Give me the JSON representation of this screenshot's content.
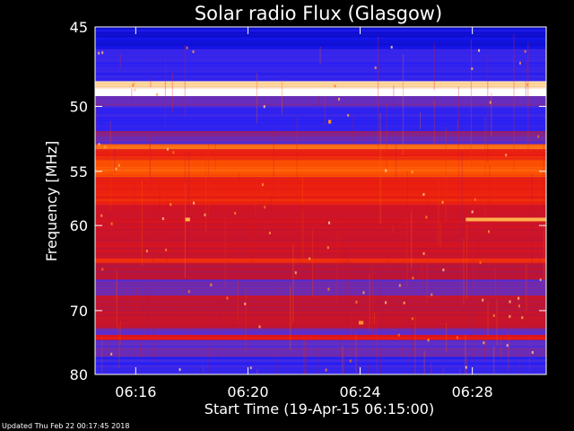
{
  "chart_data": {
    "type": "heatmap",
    "title": "Solar radio Flux (Glasgow)",
    "xlabel": "Start Time (19-Apr-15 06:15:00)",
    "ylabel": "Frequency [MHz]",
    "x_unit": "time (UT)",
    "xlim": [
      "06:14:33",
      "06:30:38"
    ],
    "ylim": [
      45,
      80
    ],
    "y_scale": "reciprocal",
    "x_ticks": [
      "06:16",
      "06:20",
      "06:24",
      "06:28"
    ],
    "y_ticks": [
      45,
      50,
      55,
      60,
      70,
      80
    ],
    "colormap": [
      "#00008b",
      "#1a1aff",
      "#5a32d2",
      "#b4143c",
      "#e61414",
      "#ff5a00",
      "#ffb450",
      "#ffffff"
    ],
    "bands_mhz": [
      {
        "from": 45,
        "to": 46.3,
        "level": 0.1
      },
      {
        "from": 46.3,
        "to": 48.3,
        "level": 0.2
      },
      {
        "from": 48.3,
        "to": 48.7,
        "level": 0.9
      },
      {
        "from": 48.7,
        "to": 49.3,
        "level": 1.0
      },
      {
        "from": 49.3,
        "to": 50.0,
        "level": 0.3
      },
      {
        "from": 50.0,
        "to": 51.8,
        "level": 0.2
      },
      {
        "from": 51.8,
        "to": 52.2,
        "level": 0.35
      },
      {
        "from": 52.2,
        "to": 52.8,
        "level": 0.3
      },
      {
        "from": 52.8,
        "to": 53.2,
        "level": 0.75
      },
      {
        "from": 53.2,
        "to": 54.0,
        "level": 0.6
      },
      {
        "from": 54.0,
        "to": 55.5,
        "level": 0.7
      },
      {
        "from": 55.5,
        "to": 58.0,
        "level": 0.6
      },
      {
        "from": 58.0,
        "to": 61.5,
        "level": 0.5
      },
      {
        "from": 61.5,
        "to": 63.5,
        "level": 0.5
      },
      {
        "from": 63.5,
        "to": 64.0,
        "level": 0.65
      },
      {
        "from": 64.0,
        "to": 66.0,
        "level": 0.45
      },
      {
        "from": 66.0,
        "to": 68.0,
        "level": 0.3
      },
      {
        "from": 68.0,
        "to": 72.5,
        "level": 0.48
      },
      {
        "from": 72.5,
        "to": 73.5,
        "level": 0.3
      },
      {
        "from": 73.5,
        "to": 74.3,
        "level": 0.55
      },
      {
        "from": 74.3,
        "to": 77.0,
        "level": 0.3
      },
      {
        "from": 77.0,
        "to": 80.0,
        "level": 0.2
      }
    ],
    "events": [
      {
        "start": "06:27:46",
        "end": "06:30:38",
        "freq_mhz": 59.4,
        "level": 0.85
      },
      {
        "start": "06:17:46",
        "end": "06:17:56",
        "freq_mhz": 59.4,
        "level": 0.85
      },
      {
        "start": "06:22:52",
        "end": "06:22:58",
        "freq_mhz": 51.1,
        "level": 0.8
      },
      {
        "start": "06:23:57",
        "end": "06:24:07",
        "freq_mhz": 71.7,
        "level": 0.8
      }
    ]
  },
  "footer": {
    "updated": "Updated Thu Feb 22 00:17:45 2018"
  }
}
